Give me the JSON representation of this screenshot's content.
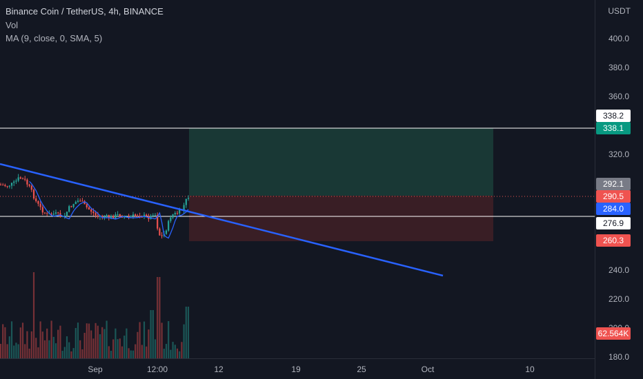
{
  "legend": {
    "title": "Binance Coin / TetherUS, 4h, BINANCE",
    "vol": "Vol",
    "ma": "MA (9, close, 0, SMA, 5)"
  },
  "price_axis": {
    "unit": "USDT",
    "ticks": [
      "400.0",
      "380.0",
      "360.0",
      "320.0",
      "240.0",
      "220.0",
      "200.0",
      "180.0"
    ]
  },
  "price_tags": {
    "target_top": "338.2",
    "target": "338.1",
    "current": "292.1",
    "entry": "290.5",
    "ma": "284.0",
    "line": "276.9",
    "stop": "260.3",
    "volume": "62.564K"
  },
  "time_axis": {
    "ticks": [
      "Sep",
      "12:00",
      "12",
      "19",
      "25",
      "Oct",
      "10"
    ]
  },
  "colors": {
    "background": "#131722",
    "up": "#26a69a",
    "down": "#ef5350",
    "trendline": "#2962ff",
    "ma": "#2962ff",
    "profit_zone": "#1e3d3a",
    "loss_zone": "#3d2025"
  }
}
